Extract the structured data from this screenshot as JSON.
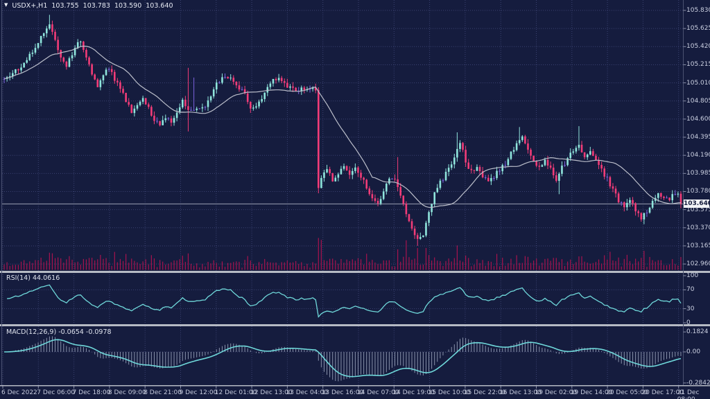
{
  "window": {
    "marker": "▼",
    "title_symbol": "USDX+,H1"
  },
  "header": {
    "open": "103.755",
    "high": "103.783",
    "low": "103.590",
    "close": "103.640"
  },
  "indicators": {
    "rsi": {
      "name": "RSI(14)",
      "value": "44.0616",
      "levels": [
        "100",
        "70",
        "30",
        "0"
      ],
      "level_values": [
        100,
        70,
        30,
        0
      ]
    },
    "macd": {
      "name": "MACD(12,26,9)",
      "main_value": "-0.0654",
      "signal_value": "-0.0978",
      "axis_labels": [
        "0.1824",
        "0.00",
        "-0.2842"
      ],
      "axis_values": [
        0.1824,
        0,
        -0.2842
      ]
    }
  },
  "price_axis": {
    "labels": [
      "105.830",
      "105.625",
      "105.420",
      "105.215",
      "105.010",
      "104.805",
      "104.600",
      "104.395",
      "104.190",
      "103.985",
      "103.780",
      "103.575",
      "103.370",
      "103.165",
      "102.960"
    ],
    "values": [
      105.83,
      105.625,
      105.42,
      105.215,
      105.01,
      104.805,
      104.6,
      104.395,
      104.19,
      103.985,
      103.78,
      103.575,
      103.37,
      103.165,
      102.96
    ],
    "current": "103.640",
    "current_value": 103.64
  },
  "time_axis": {
    "labels": [
      "6 Dec 2022",
      "7 Dec 06:00",
      "7 Dec 18:00",
      "8 Dec 09:00",
      "8 Dec 21:00",
      "9 Dec 12:00",
      "12 Dec 01:00",
      "12 Dec 13:00",
      "13 Dec 04:00",
      "13 Dec 16:00",
      "14 Dec 07:00",
      "14 Dec 19:00",
      "15 Dec 10:00",
      "15 Dec 22:00",
      "16 Dec 13:00",
      "19 Dec 02:00",
      "19 Dec 14:00",
      "20 Dec 05:00",
      "20 Dec 17:00",
      "21 Dec 08:00"
    ]
  },
  "colors": {
    "background": "#151c3e",
    "grid": "#3a4170",
    "bull": "#8fe5dc",
    "bear": "#f23c78",
    "doji": "#7d63e0",
    "volume": "#a8134e",
    "ma_line": "#bcbfcb",
    "indicator_line": "#6fd8da",
    "histogram": "#8a93ac",
    "separator": "#b6bac4",
    "frame": "#4a5170",
    "current_price_line": "#9ba0b4",
    "badge_bg": "#f2f3f7",
    "badge_text": "#141b3c"
  },
  "chart_data": {
    "type": "candlestick",
    "symbol": "USDX+",
    "timeframe": "H1",
    "candle_count": 240,
    "ylim": [
      102.874,
      105.947
    ],
    "price_grid": {
      "top": 105.83,
      "bottom": 102.96,
      "step": 0.205
    },
    "x_range_labels": [
      "6 Dec 2022",
      "21 Dec 08:00"
    ],
    "last_candle": {
      "open": 103.755,
      "high": 103.783,
      "low": 103.59,
      "close": 103.64
    },
    "big_drop_candle": {
      "i": 111,
      "open": 104.93,
      "high": 104.96,
      "low": 103.76,
      "close": 103.82
    },
    "ma_period": 20,
    "rsi_period": 14,
    "macd_params": [
      12,
      26,
      9
    ],
    "seed": 42,
    "price_waypoints": [
      [
        0,
        105.05
      ],
      [
        3,
        105.12
      ],
      [
        6,
        105.2
      ],
      [
        9,
        105.32
      ],
      [
        12,
        105.48
      ],
      [
        15,
        105.6
      ],
      [
        16,
        105.68
      ],
      [
        18,
        105.5
      ],
      [
        20,
        105.28
      ],
      [
        22,
        105.2
      ],
      [
        25,
        105.42
      ],
      [
        27,
        105.5
      ],
      [
        29,
        105.3
      ],
      [
        31,
        105.1
      ],
      [
        33,
        104.98
      ],
      [
        35,
        105.1
      ],
      [
        37,
        105.18
      ],
      [
        39,
        105.05
      ],
      [
        41,
        104.95
      ],
      [
        43,
        104.8
      ],
      [
        45,
        104.68
      ],
      [
        47,
        104.75
      ],
      [
        49,
        104.85
      ],
      [
        51,
        104.72
      ],
      [
        53,
        104.6
      ],
      [
        55,
        104.55
      ],
      [
        57,
        104.62
      ],
      [
        59,
        104.55
      ],
      [
        61,
        104.65
      ],
      [
        63,
        104.8
      ],
      [
        65,
        104.68
      ],
      [
        67,
        104.7
      ],
      [
        69,
        104.72
      ],
      [
        71,
        104.76
      ],
      [
        73,
        104.85
      ],
      [
        75,
        105.0
      ],
      [
        77,
        105.07
      ],
      [
        79,
        105.06
      ],
      [
        81,
        105.04
      ],
      [
        83,
        104.95
      ],
      [
        85,
        104.88
      ],
      [
        87,
        104.74
      ],
      [
        89,
        104.72
      ],
      [
        91,
        104.85
      ],
      [
        93,
        104.95
      ],
      [
        95,
        105.05
      ],
      [
        97,
        105.06
      ],
      [
        99,
        105.0
      ],
      [
        101,
        104.96
      ],
      [
        103,
        104.9
      ],
      [
        105,
        104.94
      ],
      [
        107,
        104.95
      ],
      [
        109,
        104.94
      ],
      [
        110,
        104.93
      ],
      [
        111,
        103.82
      ],
      [
        112,
        103.95
      ],
      [
        114,
        104.05
      ],
      [
        116,
        103.92
      ],
      [
        118,
        104.0
      ],
      [
        120,
        104.05
      ],
      [
        122,
        103.98
      ],
      [
        124,
        104.06
      ],
      [
        126,
        103.96
      ],
      [
        128,
        103.82
      ],
      [
        130,
        103.7
      ],
      [
        132,
        103.64
      ],
      [
        134,
        103.8
      ],
      [
        136,
        103.92
      ],
      [
        138,
        103.9
      ],
      [
        140,
        103.75
      ],
      [
        142,
        103.5
      ],
      [
        144,
        103.35
      ],
      [
        146,
        103.24
      ],
      [
        148,
        103.3
      ],
      [
        150,
        103.55
      ],
      [
        152,
        103.75
      ],
      [
        154,
        103.88
      ],
      [
        156,
        103.98
      ],
      [
        158,
        104.1
      ],
      [
        160,
        104.28
      ],
      [
        161,
        104.35
      ],
      [
        163,
        104.12
      ],
      [
        165,
        104.0
      ],
      [
        167,
        104.05
      ],
      [
        169,
        103.96
      ],
      [
        171,
        103.9
      ],
      [
        173,
        103.95
      ],
      [
        175,
        104.03
      ],
      [
        177,
        104.1
      ],
      [
        179,
        104.22
      ],
      [
        181,
        104.32
      ],
      [
        183,
        104.38
      ],
      [
        185,
        104.25
      ],
      [
        187,
        104.12
      ],
      [
        189,
        104.05
      ],
      [
        191,
        104.12
      ],
      [
        193,
        104.05
      ],
      [
        195,
        103.92
      ],
      [
        197,
        104.05
      ],
      [
        199,
        104.15
      ],
      [
        201,
        104.25
      ],
      [
        203,
        104.3
      ],
      [
        205,
        104.18
      ],
      [
        207,
        104.22
      ],
      [
        209,
        104.12
      ],
      [
        211,
        104.02
      ],
      [
        213,
        103.92
      ],
      [
        215,
        103.8
      ],
      [
        217,
        103.68
      ],
      [
        219,
        103.62
      ],
      [
        221,
        103.7
      ],
      [
        223,
        103.56
      ],
      [
        225,
        103.48
      ],
      [
        227,
        103.56
      ],
      [
        229,
        103.68
      ],
      [
        231,
        103.76
      ],
      [
        233,
        103.72
      ],
      [
        235,
        103.7
      ],
      [
        237,
        103.76
      ],
      [
        238,
        103.755
      ],
      [
        239,
        103.64
      ]
    ],
    "wick_spikes": [
      {
        "i": 16,
        "high": 105.78
      },
      {
        "i": 65,
        "high": 105.18,
        "low": 104.46
      },
      {
        "i": 67,
        "high": 105.07
      },
      {
        "i": 139,
        "high": 104.17
      },
      {
        "i": 146,
        "low": 103.165
      },
      {
        "i": 160,
        "high": 104.45
      },
      {
        "i": 182,
        "high": 104.51
      },
      {
        "i": 196,
        "low": 103.75
      },
      {
        "i": 203,
        "high": 104.52
      },
      {
        "i": 226,
        "low": 103.41
      }
    ],
    "volume_boosts": [
      [
        16,
        12
      ],
      [
        65,
        10
      ],
      [
        111,
        34
      ],
      [
        112,
        18
      ],
      [
        139,
        14
      ],
      [
        142,
        16
      ],
      [
        146,
        18
      ],
      [
        160,
        14
      ],
      [
        203,
        12
      ],
      [
        213,
        10
      ],
      [
        220,
        12
      ],
      [
        226,
        12
      ]
    ]
  }
}
